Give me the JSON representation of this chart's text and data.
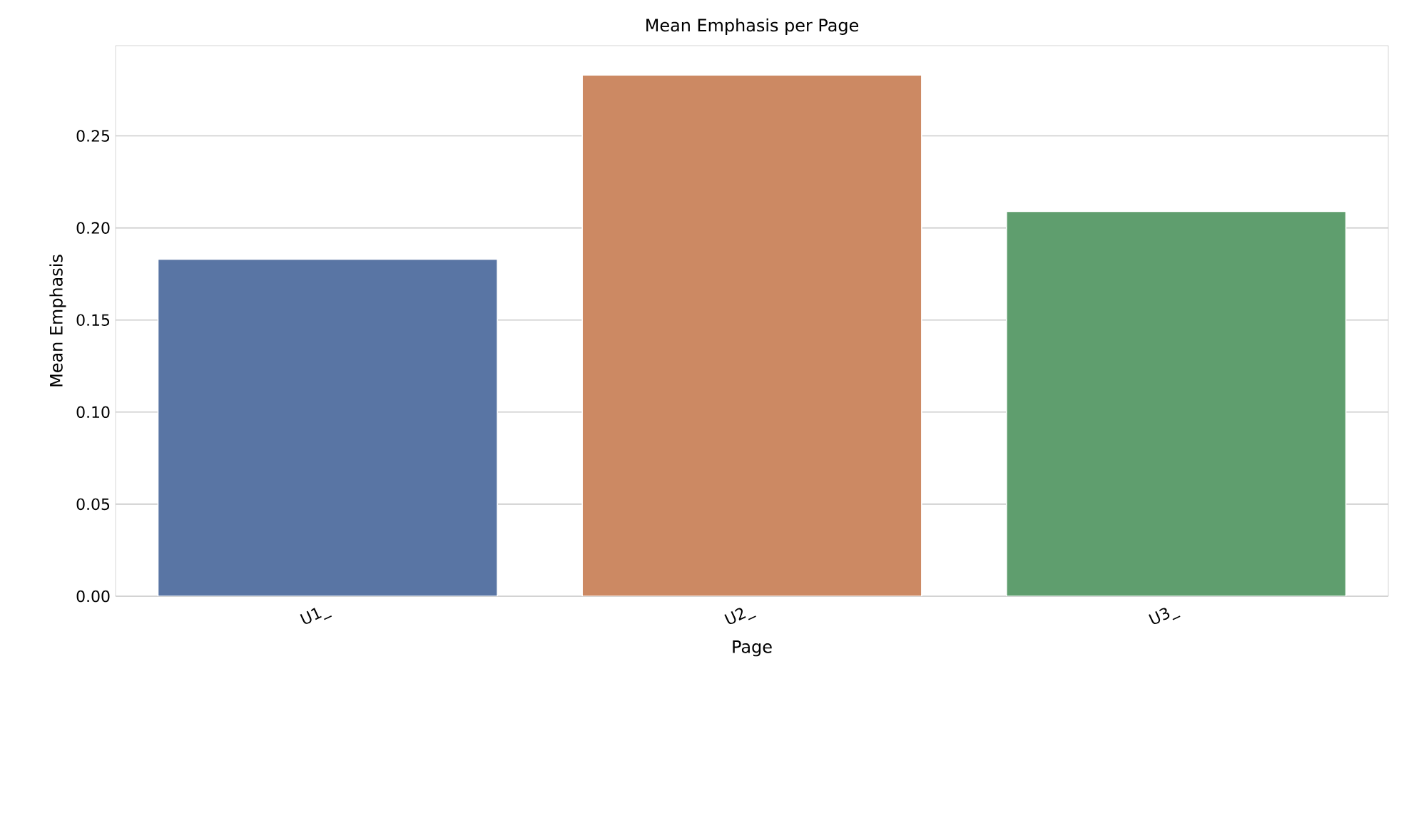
{
  "chart_data": {
    "type": "bar",
    "title": "Mean Emphasis per Page",
    "xlabel": "Page",
    "ylabel": "Mean Emphasis",
    "categories": [
      "U1_",
      "U2_",
      "U3_"
    ],
    "values": [
      0.183,
      0.283,
      0.209
    ],
    "colors": [
      "#5975a4",
      "#cc8963",
      "#5f9e6e"
    ],
    "ylim": [
      0,
      0.299
    ],
    "yticks": [
      {
        "value": 0,
        "label": "0.00"
      },
      {
        "value": 0.05,
        "label": "0.05"
      },
      {
        "value": 0.1,
        "label": "0.10"
      },
      {
        "value": 0.15,
        "label": "0.15"
      },
      {
        "value": 0.2,
        "label": "0.20"
      },
      {
        "value": 0.25,
        "label": "0.25"
      }
    ],
    "grid": "y"
  }
}
